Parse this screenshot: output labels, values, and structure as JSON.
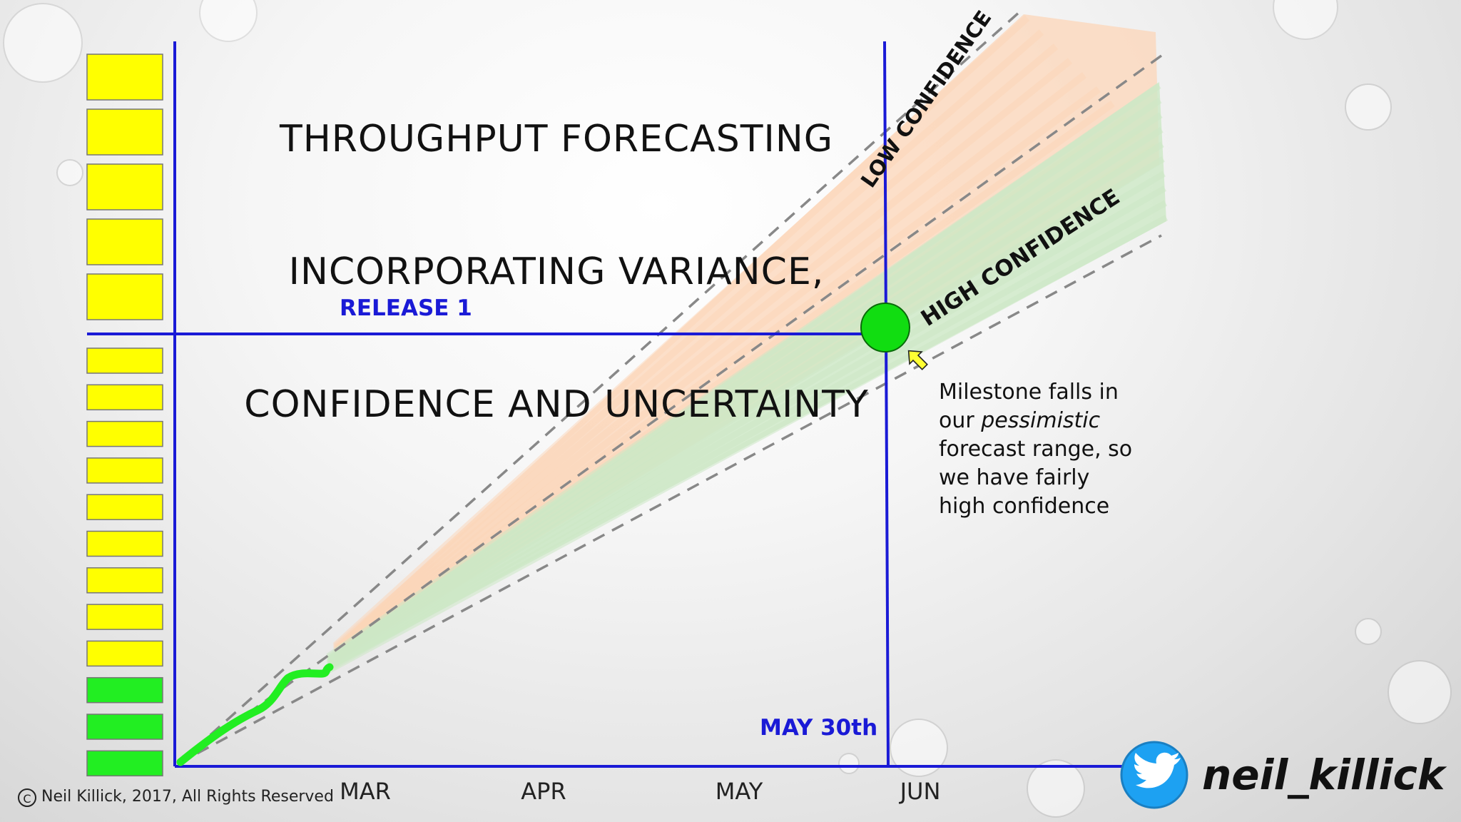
{
  "slide": {
    "title_lines": [
      "THROUGHPUT FORECASTING",
      "INCORPORATING VARIANCE,",
      "CONFIDENCE AND UNCERTAINTY"
    ],
    "release_label": "RELEASE 1",
    "date_label": "MAY 30th",
    "low_confidence_label": "LOW CONFIDENCE",
    "high_confidence_label": "HIGH CONFIDENCE",
    "note_line1": "Milestone falls in",
    "note_line2_prefix": "our ",
    "note_line2_em": "pessimistic",
    "note_line3": "forecast range, so",
    "note_line4": "we have fairly",
    "note_line5": "high confidence",
    "months": [
      "MAR",
      "APR",
      "MAY",
      "JUN"
    ],
    "copyright_symbol": "©",
    "copyright": "Neil Killick, 2017, All Rights Reserved",
    "twitter_handle": "neil_killick",
    "icons": [
      "twitter-bird-icon",
      "arrow-icon",
      "copyright-icon"
    ]
  },
  "colors": {
    "axis": "#1a1ad6",
    "backlog_pending": "#ffff00",
    "backlog_done": "#22ee22",
    "progress_line": "#22ee22",
    "low_confidence_band": "#fcd6b8",
    "high_confidence_band": "#cde8c6",
    "milestone": "#11dd11",
    "twitter": "#1da1f2"
  },
  "backlog": {
    "top_group": [
      "pending",
      "pending",
      "pending",
      "pending",
      "pending"
    ],
    "bottom_group": [
      "pending",
      "pending",
      "pending",
      "pending",
      "pending",
      "pending",
      "pending",
      "pending",
      "pending",
      "done",
      "done",
      "done"
    ]
  }
}
